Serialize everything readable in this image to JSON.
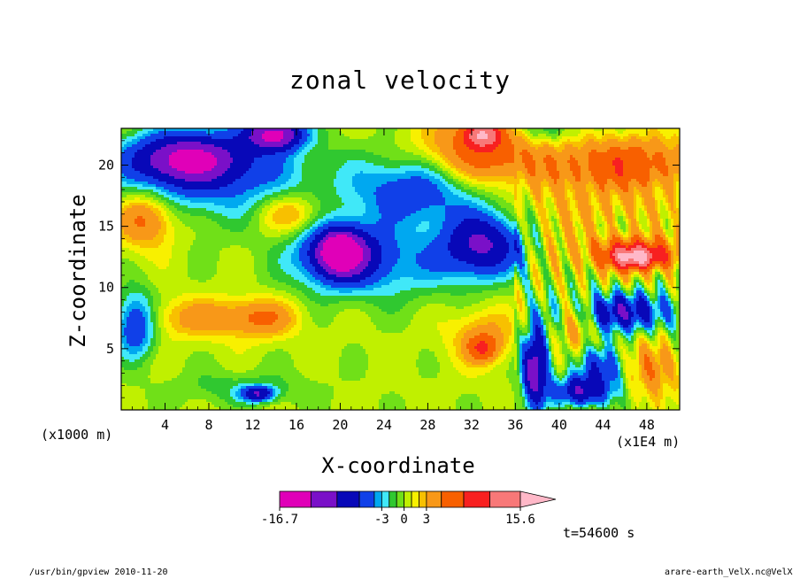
{
  "figure": {
    "time_label": "t=54600 s",
    "footer_left": "/usr/bin/gpview  2010-11-20",
    "footer_right": "arare-earth_VelX.nc@VelX",
    "x_unit_left": "(x1000 m)",
    "x_unit_right": "(x1E4 m)"
  },
  "chart_data": {
    "type": "heatmap",
    "title": "zonal velocity",
    "xlabel": "X-coordinate",
    "ylabel": "Z-coordinate",
    "x_ticks": [
      4,
      8,
      12,
      16,
      20,
      24,
      28,
      32,
      36,
      40,
      44,
      48
    ],
    "y_ticks": [
      5,
      10,
      15,
      20
    ],
    "xlim": [
      0,
      51
    ],
    "ylim": [
      0,
      23
    ],
    "colorbar": {
      "labels": [
        "-16.7",
        "-3",
        "0",
        "3",
        "15.6"
      ],
      "levels": [
        -16.7,
        -12.5,
        -9,
        -6,
        -4,
        -3,
        -2,
        -1,
        0,
        1,
        2,
        3,
        5,
        8,
        11.5,
        15.6
      ],
      "colors": [
        "#e000b8",
        "#7a10c8",
        "#0808b8",
        "#1040e8",
        "#00a8f0",
        "#40e8f8",
        "#30c830",
        "#70e018",
        "#c0f000",
        "#f8f000",
        "#f8c000",
        "#f89818",
        "#f86000",
        "#f82020",
        "#f87878"
      ],
      "extend_color": "#ffb8c8"
    },
    "blobs": [
      {
        "x": 24,
        "y": 12,
        "rx": 8,
        "ry": 3.0,
        "v": -4
      },
      {
        "x": 20,
        "y": 12.8,
        "rx": 3.5,
        "ry": 2.4,
        "v": -9
      },
      {
        "x": 20,
        "y": 12.9,
        "rx": 1.6,
        "ry": 1.4,
        "v": -12
      },
      {
        "x": 8,
        "y": 19.5,
        "rx": 9,
        "ry": 3.6,
        "v": -6
      },
      {
        "x": 6,
        "y": 20.5,
        "rx": 4.5,
        "ry": 1.8,
        "v": -10
      },
      {
        "x": 14,
        "y": 22.5,
        "rx": 2.5,
        "ry": 1.2,
        "v": -13
      },
      {
        "x": 27,
        "y": 18,
        "rx": 6,
        "ry": 2.8,
        "v": -6
      },
      {
        "x": 33,
        "y": 13.5,
        "rx": 3.5,
        "ry": 2.5,
        "v": -9
      },
      {
        "x": 38,
        "y": 23,
        "rx": 4,
        "ry": 1.5,
        "v": -3
      },
      {
        "x": 33,
        "y": 21,
        "rx": 5.5,
        "ry": 2.8,
        "v": 7
      },
      {
        "x": 33,
        "y": 22.5,
        "rx": 1.6,
        "ry": 1,
        "v": 12
      },
      {
        "x": 46,
        "y": 20,
        "rx": 6.5,
        "ry": 2.2,
        "v": 7
      },
      {
        "x": 47,
        "y": 12.8,
        "rx": 5,
        "ry": 1.6,
        "v": 7
      },
      {
        "x": 47,
        "y": 12.5,
        "rx": 2.2,
        "ry": 0.8,
        "v": 12
      },
      {
        "x": 46,
        "y": 8,
        "rx": 5,
        "ry": 1.6,
        "v": -8
      },
      {
        "x": 2.2,
        "y": 15.6,
        "rx": 2.6,
        "ry": 2.2,
        "v": 6
      },
      {
        "x": 15.5,
        "y": 16,
        "rx": 2.8,
        "ry": 1.6,
        "v": 4
      },
      {
        "x": 7.5,
        "y": 7.5,
        "rx": 5.5,
        "ry": 1.6,
        "v": 3.5
      },
      {
        "x": 13,
        "y": 7.5,
        "rx": 3,
        "ry": 1.5,
        "v": 4
      },
      {
        "x": 33,
        "y": 6,
        "rx": 3,
        "ry": 2.2,
        "v": 3.5
      },
      {
        "x": 33,
        "y": 5,
        "rx": 1.3,
        "ry": 1,
        "v": 6
      },
      {
        "x": 11,
        "y": 1.8,
        "rx": 6,
        "ry": 1.4,
        "v": -2
      },
      {
        "x": 12.5,
        "y": 1.3,
        "rx": 1.5,
        "ry": 0.6,
        "v": -8
      },
      {
        "x": 1.3,
        "y": 7,
        "rx": 1.8,
        "ry": 2.6,
        "v": -7
      },
      {
        "x": 37.8,
        "y": 3.5,
        "rx": 1.2,
        "ry": 3.2,
        "v": -12
      },
      {
        "x": 41.5,
        "y": 7,
        "rx": 1.5,
        "ry": 2.2,
        "v": 4
      },
      {
        "x": 44,
        "y": 3.5,
        "rx": 2.2,
        "ry": 1.8,
        "v": -6
      },
      {
        "x": 48.5,
        "y": 3.5,
        "rx": 2.2,
        "ry": 2.2,
        "v": 5
      },
      {
        "x": 42,
        "y": 1.5,
        "rx": 2.5,
        "ry": 1.2,
        "v": -9
      },
      {
        "x": 40,
        "y": 16,
        "rx": 3,
        "ry": 2.8,
        "v": 2
      },
      {
        "x": 46,
        "y": 16.5,
        "rx": 4,
        "ry": 1.4,
        "v": 2
      }
    ]
  }
}
